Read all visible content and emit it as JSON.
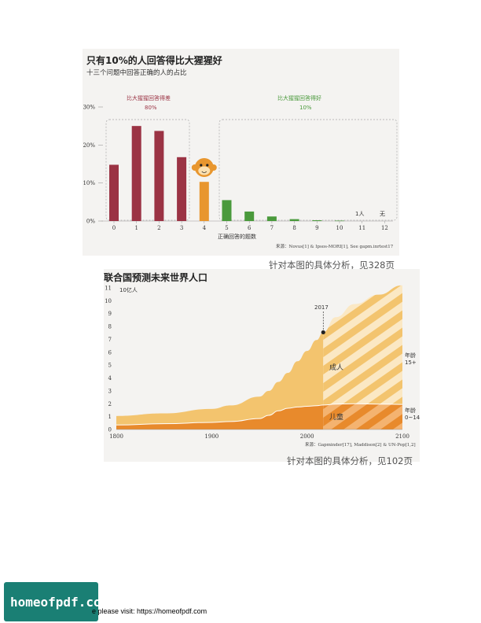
{
  "chart1": {
    "title": "只有10%的人回答得比大猩猩好",
    "subtitle": "十三个问题中回答正确的人的占比",
    "group_low_label": "比大猩猩回答得差",
    "group_low_value": "80%",
    "group_high_label": "比大猩猩回答得好",
    "group_high_value": "10%",
    "xlabel": "正确回答的题数",
    "source": "来源：Novus[1] & Ipsos-MORI[1], See gapm.inrtest17",
    "caption": "针对本图的具体分析，见328页",
    "note_11": "1人",
    "note_12": "无",
    "colors": {
      "worse": "#9b3344",
      "gorilla": "#e8962e",
      "better": "#4a9a3c"
    }
  },
  "chart2": {
    "title": "联合国预测未来世界人口",
    "unit_label": "10亿人",
    "marker_label": "2017",
    "adults_label": "成人",
    "children_label": "儿童",
    "right_label_adults": [
      "年龄",
      "15+"
    ],
    "right_label_children": [
      "年龄",
      "0~14"
    ],
    "source": "来源：Gapminder[17], Maddison[2] & UN-Pop[1,2]",
    "caption": "针对本图的具体分析，见102页",
    "colors": {
      "adults": "#f3c46e",
      "children": "#e88a2c",
      "projection_stripe": "#fbe8c4"
    }
  },
  "footer": {
    "badge": "homeofpdf.com",
    "text": "e please visit: https://homeofpdf.com"
  },
  "chart_data": [
    {
      "type": "bar",
      "title": "只有10%的人回答得比大猩猩好",
      "subtitle": "十三个问题中回答正确的人的占比",
      "xlabel": "正确回答的题数",
      "ylabel": "",
      "categories": [
        "0",
        "1",
        "2",
        "3",
        "4",
        "5",
        "6",
        "7",
        "8",
        "9",
        "10",
        "11",
        "12"
      ],
      "values": [
        14.8,
        25.0,
        23.7,
        16.8,
        10.3,
        5.5,
        2.5,
        1.2,
        0.5,
        0.2,
        0.1,
        0.0,
        0.0
      ],
      "yticks": [
        "0%",
        "10%",
        "20%",
        "30%"
      ],
      "ylim": [
        0,
        30
      ],
      "grid": false,
      "legend": "none"
    },
    {
      "type": "area",
      "title": "联合国预测未来世界人口",
      "ylabel": "10亿人",
      "xticks": [
        "1800",
        "1900",
        "2000",
        "2100"
      ],
      "yticks": [
        "0",
        "1",
        "2",
        "3",
        "4",
        "5",
        "6",
        "7",
        "8",
        "9",
        "10",
        "11"
      ],
      "xlim": [
        1800,
        2100
      ],
      "ylim": [
        0,
        11
      ],
      "x": [
        1800,
        1850,
        1900,
        1920,
        1950,
        1960,
        1970,
        1980,
        1990,
        2000,
        2010,
        2017,
        2030,
        2050,
        2075,
        2100
      ],
      "series": [
        {
          "name": "儿童",
          "values": [
            0.35,
            0.45,
            0.55,
            0.62,
            0.85,
            1.1,
            1.45,
            1.65,
            1.75,
            1.8,
            1.85,
            1.9,
            1.97,
            2.0,
            1.97,
            1.95
          ]
        },
        {
          "name": "成人",
          "values": [
            0.7,
            0.8,
            1.05,
            1.25,
            1.7,
            1.9,
            2.25,
            2.75,
            3.55,
            4.3,
            5.1,
            5.65,
            6.75,
            7.75,
            8.5,
            9.25
          ]
        }
      ],
      "projection_start": 2017,
      "grid": false,
      "legend": "inline"
    }
  ]
}
